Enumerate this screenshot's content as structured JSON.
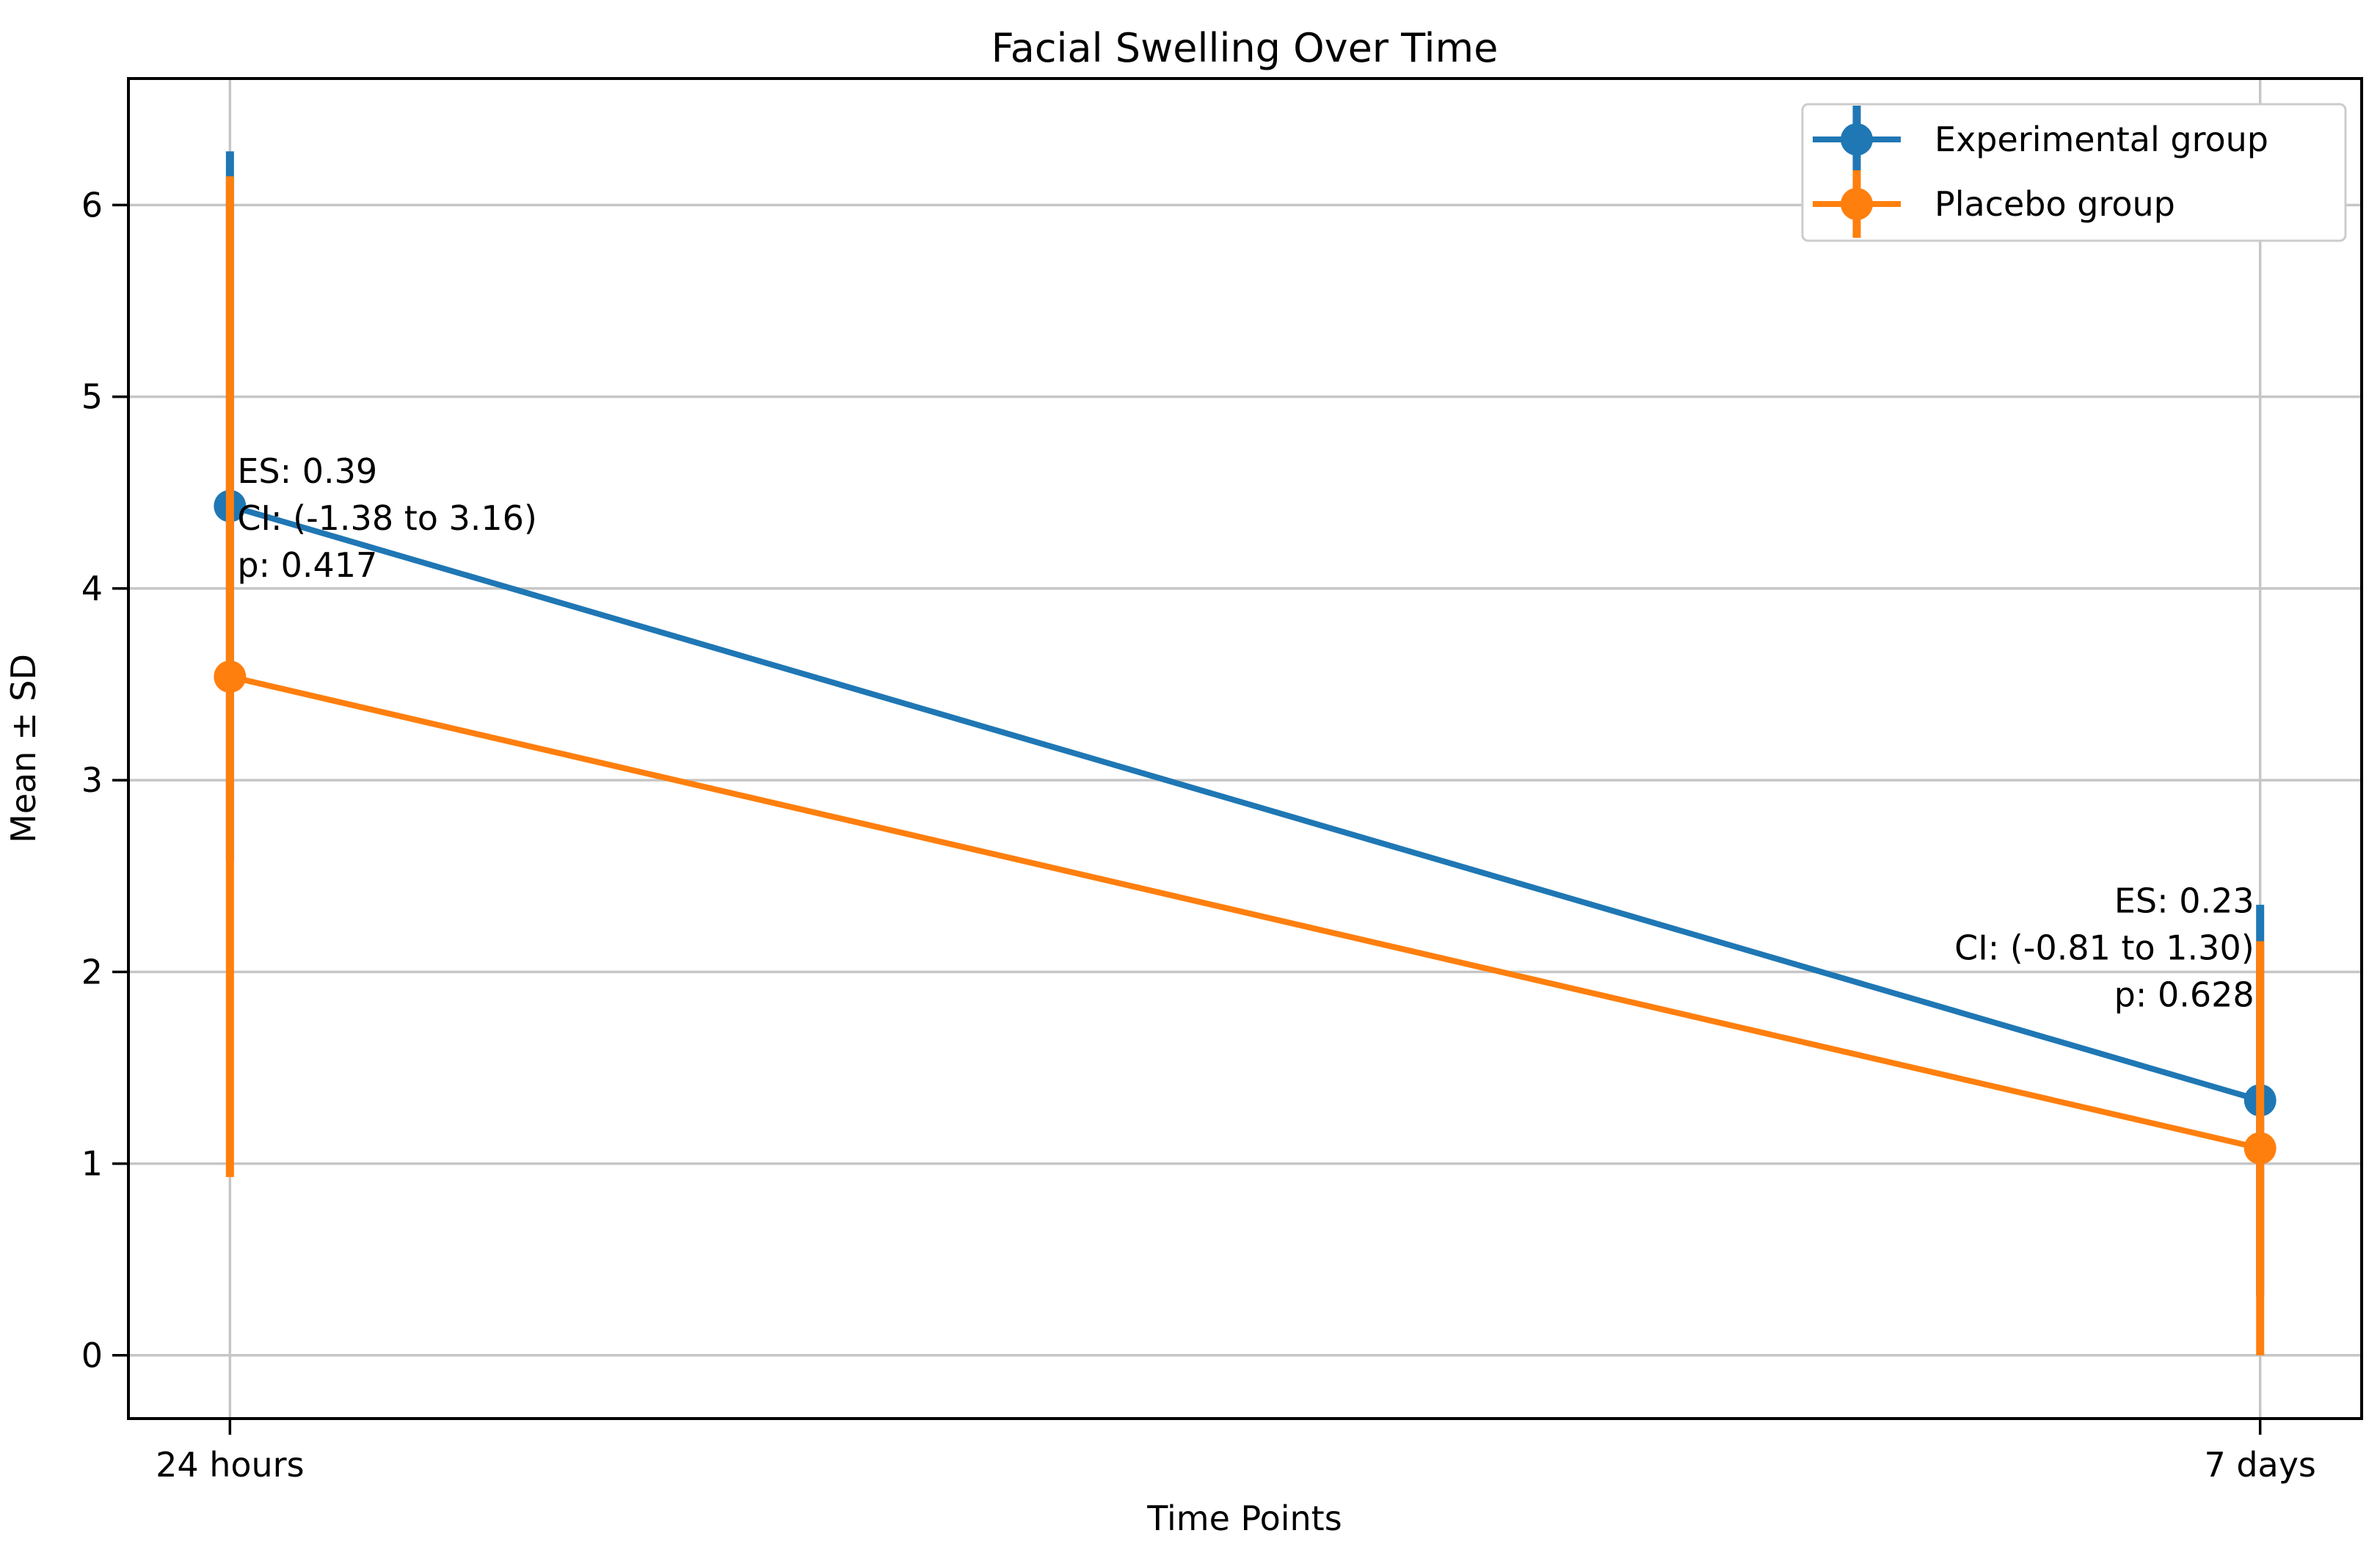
{
  "figure": {
    "background": "#ffffff"
  },
  "chart_data": {
    "type": "line",
    "title": "Facial Swelling Over Time",
    "xlabel": "Time Points",
    "ylabel": "Mean ± SD",
    "categories": [
      "24 hours",
      "7 days"
    ],
    "yticks": [
      0,
      1,
      2,
      3,
      4,
      5,
      6
    ],
    "ylim": [
      -0.33,
      6.66
    ],
    "grid": true,
    "legend_position": "upper right",
    "series": [
      {
        "name": "Experimental group",
        "color": "#1f77b4",
        "means": [
          4.43,
          1.33
        ],
        "sd": [
          1.85,
          1.02
        ]
      },
      {
        "name": "Placebo group",
        "color": "#ff7f0e",
        "means": [
          3.54,
          1.08
        ],
        "sd": [
          2.61,
          1.08
        ]
      }
    ],
    "annotations": [
      {
        "at_category": "24 hours",
        "x_index": 0,
        "align": "left",
        "anchor_value": 4.55,
        "lines": [
          "ES: 0.39",
          "CI: (-1.38 to 3.16)",
          "p: 0.417"
        ]
      },
      {
        "at_category": "7 days",
        "x_index": 1,
        "align": "right",
        "anchor_value": 2.31,
        "lines": [
          "ES: 0.23",
          "CI: (-0.81 to 1.30)",
          "p: 0.628"
        ]
      }
    ],
    "colors": {
      "grid": "#c6c6c6",
      "spine": "#000000",
      "legend_border": "#cccccc",
      "legend_background": "#ffffff",
      "experimental": "#1f77b4",
      "placebo": "#ff7f0e"
    }
  }
}
